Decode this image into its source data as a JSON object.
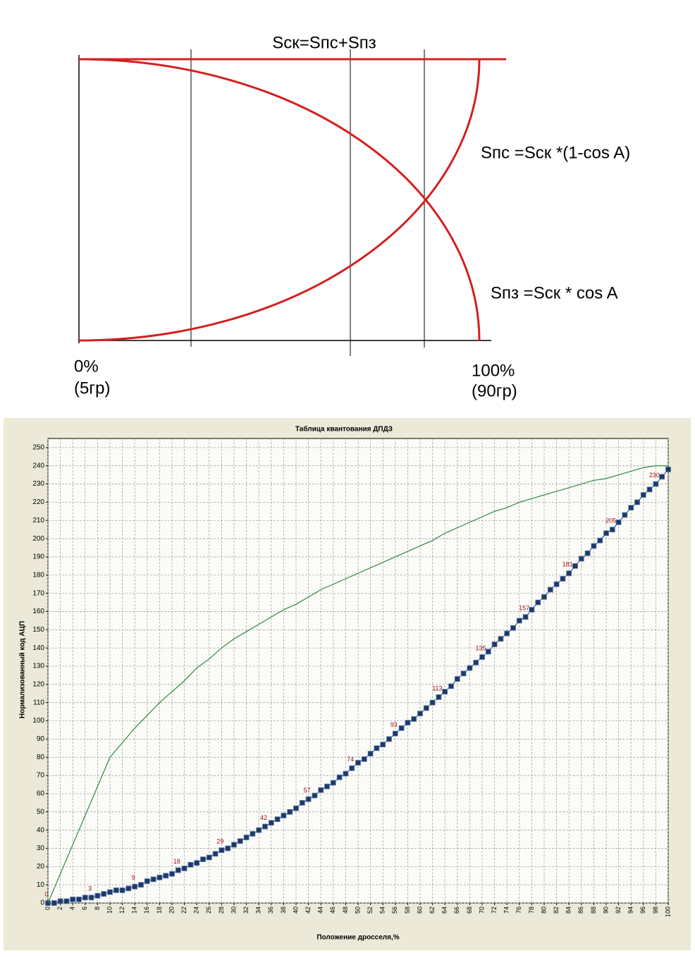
{
  "diagram": {
    "formula_total": "Sск=Sпс+Sпз",
    "formula_pc": "Sпс =Sск *(1-cos A)",
    "formula_pz": "Sпз =Sск * cos A",
    "left_label": "0%",
    "left_sublabel": "(5гр)",
    "right_label": "100%",
    "right_sublabel": "(90гр)"
  },
  "chart_data": {
    "type": "line",
    "title": "Таблица квантования ДПДЗ",
    "x_label": "Положение дросселя,%",
    "y_label": "Нормализованный код АЦП",
    "x": [
      0,
      1,
      2,
      3,
      4,
      5,
      6,
      7,
      8,
      9,
      10,
      11,
      12,
      13,
      14,
      15,
      16,
      17,
      18,
      19,
      20,
      21,
      22,
      23,
      24,
      25,
      26,
      27,
      28,
      29,
      30,
      31,
      32,
      33,
      34,
      35,
      36,
      37,
      38,
      39,
      40,
      41,
      42,
      43,
      44,
      45,
      46,
      47,
      48,
      49,
      50,
      51,
      52,
      53,
      54,
      55,
      56,
      57,
      58,
      59,
      60,
      61,
      62,
      63,
      64,
      65,
      66,
      67,
      68,
      69,
      70,
      71,
      72,
      73,
      74,
      75,
      76,
      77,
      78,
      79,
      80,
      81,
      82,
      83,
      84,
      85,
      86,
      87,
      88,
      89,
      90,
      91,
      92,
      93,
      94,
      95,
      96,
      97,
      98,
      99,
      100
    ],
    "series": [
      {
        "color": "#1f3864",
        "marker": "square",
        "data_labels_every": 7,
        "values": [
          0,
          0,
          1,
          1,
          2,
          2,
          3,
          3,
          4,
          5,
          6,
          7,
          7,
          8,
          9,
          10,
          12,
          13,
          14,
          15,
          16,
          18,
          19,
          21,
          22,
          24,
          25,
          27,
          29,
          30,
          32,
          34,
          36,
          38,
          40,
          42,
          44,
          46,
          48,
          50,
          52,
          55,
          57,
          59,
          62,
          64,
          66,
          69,
          71,
          74,
          77,
          79,
          82,
          85,
          87,
          90,
          93,
          96,
          99,
          101,
          104,
          107,
          110,
          113,
          116,
          119,
          123,
          126,
          129,
          132,
          135,
          138,
          142,
          145,
          148,
          151,
          155,
          157,
          161,
          165,
          168,
          172,
          175,
          178,
          181,
          185,
          189,
          192,
          196,
          199,
          203,
          205,
          209,
          213,
          217,
          220,
          224,
          227,
          230,
          234,
          238
        ]
      },
      {
        "color": "#2e8b3e",
        "marker": "none",
        "x": [
          0,
          2,
          4,
          6,
          8,
          10,
          12,
          14,
          16,
          18,
          20,
          22,
          24,
          26,
          28,
          30,
          32,
          34,
          36,
          38,
          40,
          42,
          44,
          46,
          48,
          50,
          52,
          54,
          56,
          58,
          60,
          62,
          64,
          66,
          68,
          70,
          72,
          74,
          76,
          78,
          80,
          82,
          84,
          86,
          88,
          90,
          92,
          94,
          96,
          98,
          100
        ],
        "values": [
          0,
          16,
          32,
          48,
          64,
          80,
          88,
          96,
          103,
          110,
          116,
          122,
          129,
          134,
          140,
          145,
          149,
          153,
          157,
          161,
          164,
          168,
          172,
          175,
          178,
          181,
          184,
          187,
          190,
          193,
          196,
          199,
          203,
          206,
          209,
          212,
          215,
          217,
          220,
          222,
          224,
          226,
          228,
          230,
          232,
          233,
          235,
          237,
          239,
          240,
          240
        ]
      }
    ],
    "xlim": [
      0,
      100
    ],
    "xticks": [
      0,
      2,
      4,
      6,
      8,
      10,
      12,
      14,
      16,
      18,
      20,
      22,
      24,
      26,
      28,
      30,
      32,
      34,
      36,
      38,
      40,
      42,
      44,
      46,
      48,
      50,
      52,
      54,
      56,
      58,
      60,
      62,
      64,
      66,
      68,
      70,
      72,
      74,
      76,
      78,
      80,
      82,
      84,
      86,
      88,
      90,
      92,
      94,
      96,
      98,
      100
    ],
    "ylim": [
      0,
      255
    ],
    "yticks": [
      0,
      10,
      20,
      30,
      40,
      50,
      60,
      70,
      80,
      90,
      100,
      110,
      120,
      130,
      140,
      150,
      160,
      170,
      180,
      190,
      200,
      210,
      220,
      230,
      240,
      250
    ],
    "grid": true
  }
}
